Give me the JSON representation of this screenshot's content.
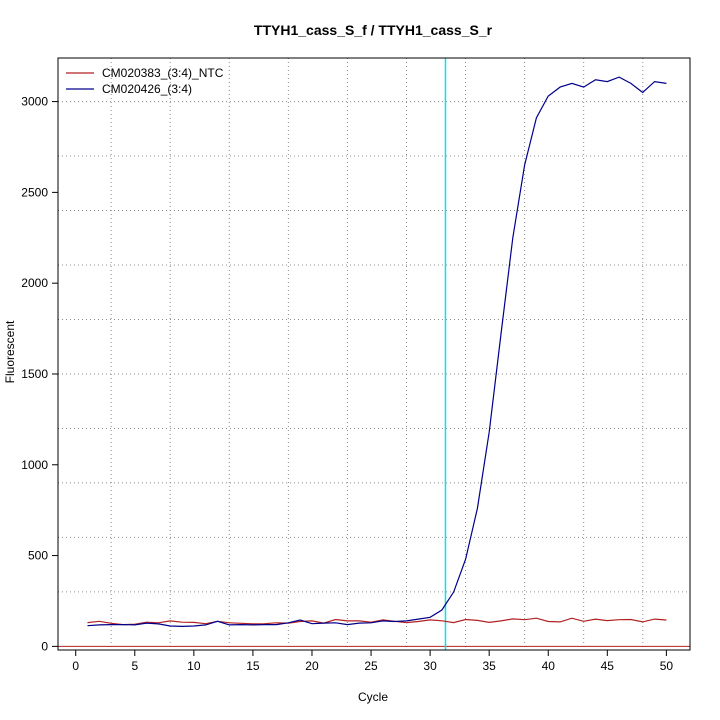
{
  "chart_data": {
    "type": "line",
    "title": "TTYH1_cass_S_f / TTYH1_cass_S_r",
    "xlabel": "Cycle",
    "ylabel": "Fluorescent",
    "xlim": [
      -1.5,
      52
    ],
    "ylim": [
      -20,
      3240
    ],
    "xticks": [
      0,
      5,
      10,
      15,
      20,
      25,
      30,
      35,
      40,
      45,
      50
    ],
    "yticks": [
      0,
      500,
      1000,
      1500,
      2000,
      2500,
      3000
    ],
    "xgrid_dotted": [
      3,
      8,
      13,
      18,
      23,
      28,
      33,
      38,
      43,
      48
    ],
    "ygrid_dotted": [
      300,
      600,
      900,
      1200,
      1500,
      1800,
      2100,
      2400,
      2700,
      3000
    ],
    "grid": true,
    "legend_position": "top-left",
    "threshold": {
      "x": 31.3,
      "color": "#00e5ee"
    },
    "baseline": {
      "y": 0,
      "color": "#b22222"
    },
    "x": [
      1,
      2,
      3,
      4,
      5,
      6,
      7,
      8,
      9,
      10,
      11,
      12,
      13,
      14,
      15,
      16,
      17,
      18,
      19,
      20,
      21,
      22,
      23,
      24,
      25,
      26,
      27,
      28,
      29,
      30,
      31,
      32,
      33,
      34,
      35,
      36,
      37,
      38,
      39,
      40,
      41,
      42,
      43,
      44,
      45,
      46,
      47,
      48,
      49,
      50
    ],
    "series": [
      {
        "name": "CM020383_(3:4)_NTC",
        "color": "#b22222",
        "values": [
          131,
          138,
          127,
          120,
          122,
          133,
          130,
          140,
          133,
          132,
          125,
          138,
          130,
          127,
          124,
          125,
          130,
          128,
          137,
          140,
          128,
          148,
          140,
          140,
          133,
          146,
          138,
          131,
          137,
          146,
          141,
          131,
          148,
          143,
          132,
          140,
          151,
          147,
          155,
          137,
          135,
          155,
          138,
          150,
          142,
          147,
          148,
          135,
          150,
          145
        ]
      },
      {
        "name": "CM020426_(3:4)",
        "color": "#00008b",
        "values": [
          114,
          118,
          120,
          120,
          118,
          128,
          124,
          112,
          110,
          112,
          118,
          138,
          118,
          120,
          118,
          120,
          120,
          130,
          145,
          125,
          128,
          130,
          120,
          128,
          130,
          140,
          137,
          140,
          150,
          160,
          200,
          300,
          480,
          760,
          1180,
          1720,
          2250,
          2650,
          2910,
          3030,
          3080,
          3100,
          3080,
          3120,
          3110,
          3135,
          3100,
          3050,
          3110,
          3100
        ]
      }
    ]
  }
}
